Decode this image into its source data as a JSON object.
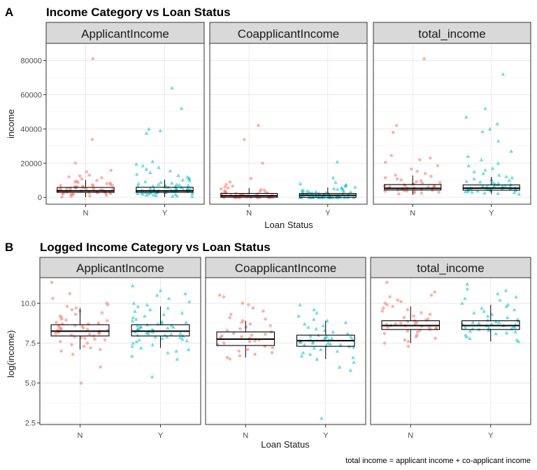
{
  "caption": "total income = applicant income + co-applicant income",
  "colors": {
    "N": "#F8766D",
    "Y": "#00BFC4",
    "strip_bg": "#D9D9D9",
    "grid": "#EBEBEB"
  },
  "chart_data": [
    {
      "tag": "A",
      "type": "box-jitter",
      "title": "Income Category vs Loan Status",
      "xlabel": "Loan Status",
      "ylabel": "income",
      "categories": [
        "N",
        "Y"
      ],
      "ylim": [
        -4000,
        90000
      ],
      "yticks": [
        0,
        20000,
        40000,
        60000,
        80000
      ],
      "ytick_labels": [
        "0",
        "20000",
        "40000",
        "60000",
        "80000"
      ],
      "grid": true,
      "panels": [
        {
          "label": "ApplicantIncome",
          "N": {
            "q1": 2900,
            "median": 3800,
            "q3": 5800,
            "whisker_low": 150,
            "whisker_high": 10200,
            "points": [
              81000,
              33800,
              20000,
              15800,
              14900,
              13000,
              12500,
              12000,
              11400,
              10800,
              9800,
              9500,
              9100,
              8600,
              8300,
              8000,
              7600,
              7300,
              7000,
              6800,
              6500,
              6200,
              6000,
              5800,
              5500,
              5200,
              5000,
              4800,
              4600,
              4400,
              4200,
              4000,
              3900,
              3700,
              3500,
              3300,
              3100,
              3000,
              2800,
              2600,
              2500,
              2300,
              2100,
              1900,
              1700,
              1500,
              1200,
              900,
              600,
              300,
              4100,
              3600,
              3200,
              2900,
              5400,
              4900,
              6300,
              7100
            ]
          },
          "Y": {
            "q1": 2900,
            "median": 3800,
            "q3": 5900,
            "whisker_low": 200,
            "whisker_high": 10400,
            "points": [
              64000,
              52000,
              40000,
              39000,
              37500,
              21000,
              19500,
              18500,
              17500,
              16500,
              15500,
              14500,
              13500,
              12800,
              12000,
              11300,
              10800,
              10200,
              9700,
              9200,
              8800,
              8400,
              8000,
              7600,
              7300,
              7000,
              6700,
              6400,
              6100,
              5900,
              5600,
              5300,
              5100,
              4900,
              4700,
              4500,
              4300,
              4100,
              3900,
              3700,
              3500,
              3300,
              3100,
              2900,
              2700,
              2500,
              2300,
              2100,
              1900,
              1700,
              1500,
              1300,
              1100,
              900,
              700,
              500,
              4000,
              3800,
              3600,
              3400,
              4200,
              4400,
              4800,
              5200,
              5800,
              6300,
              6900,
              7500,
              3000,
              2600,
              2200,
              3300,
              3700,
              4100
            ]
          }
        },
        {
          "label": "CoapplicantIncome",
          "N": {
            "q1": 0,
            "median": 900,
            "q3": 2300,
            "whisker_low": 0,
            "whisker_high": 5500,
            "points": [
              42000,
              33800,
              20000,
              11000,
              9000,
              7500,
              6500,
              6000,
              5500,
              5000,
              4500,
              4200,
              3800,
              3500,
              3200,
              3000,
              2800,
              2500,
              2300,
              2000,
              1800,
              1600,
              1400,
              1200,
              1000,
              800,
              500,
              300,
              0,
              0,
              0,
              0,
              0,
              0,
              0,
              0,
              0,
              0,
              0,
              0,
              0,
              0,
              1500,
              2200,
              2600,
              1100,
              1700
            ]
          },
          "Y": {
            "q1": 0,
            "median": 1200,
            "q3": 2300,
            "whisker_low": 0,
            "whisker_high": 5700,
            "points": [
              20800,
              11500,
              8900,
              8000,
              7500,
              7000,
              6500,
              6000,
              5700,
              5400,
              5100,
              4800,
              4500,
              4200,
              4000,
              3800,
              3600,
              3400,
              3200,
              3000,
              2800,
              2600,
              2400,
              2200,
              2000,
              1800,
              1600,
              1400,
              1200,
              1000,
              800,
              600,
              400,
              200,
              0,
              0,
              0,
              0,
              0,
              0,
              0,
              0,
              0,
              0,
              0,
              0,
              0,
              0,
              0,
              0,
              0,
              0,
              0,
              0,
              1300,
              1700,
              2100,
              2500,
              1500,
              1900
            ]
          }
        },
        {
          "label": "total_income",
          "N": {
            "q1": 4300,
            "median": 5300,
            "q3": 7500,
            "whisker_low": 1500,
            "whisker_high": 12800,
            "points": [
              81000,
              42000,
              38000,
              24500,
              23000,
              22000,
              20500,
              18500,
              16500,
              15200,
              14000,
              13000,
              12300,
              11500,
              10800,
              10200,
              9700,
              9200,
              8700,
              8300,
              7900,
              7500,
              7200,
              6900,
              6600,
              6300,
              6000,
              5800,
              5600,
              5400,
              5200,
              5000,
              4800,
              4600,
              4400,
              4200,
              4000,
              3800,
              3600,
              3300,
              3000,
              2700,
              2400,
              2000,
              5500,
              6200,
              6800,
              5100
            ]
          },
          "Y": {
            "q1": 4200,
            "median": 5400,
            "q3": 7300,
            "whisker_low": 1900,
            "whisker_high": 12000,
            "points": [
              72000,
              52000,
              47000,
              43000,
              40000,
              38500,
              33000,
              27000,
              24000,
              22000,
              20000,
              18500,
              17000,
              16000,
              15000,
              14000,
              13000,
              12200,
              11500,
              10900,
              10400,
              9900,
              9400,
              9000,
              8600,
              8200,
              7800,
              7500,
              7200,
              6900,
              6600,
              6300,
              6100,
              5900,
              5700,
              5500,
              5300,
              5100,
              4900,
              4700,
              4500,
              4300,
              4100,
              3900,
              3700,
              3500,
              3300,
              3100,
              2900,
              2600,
              2300,
              2000,
              5600,
              6000,
              6400,
              6800,
              5200,
              4800,
              5400,
              5800
            ]
          }
        }
      ]
    },
    {
      "tag": "B",
      "type": "box-jitter",
      "title": "Logged Income Category vs Loan Status",
      "xlabel": "Loan Status",
      "ylabel": "log(income)",
      "categories": [
        "N",
        "Y"
      ],
      "ylim": [
        2.4,
        11.6
      ],
      "yticks": [
        2.5,
        5.0,
        7.5,
        10.0
      ],
      "ytick_labels": [
        "2.5",
        "5.0",
        "7.5",
        "10.0"
      ],
      "grid": true,
      "panels": [
        {
          "label": "ApplicantIncome",
          "N": {
            "q1": 7.95,
            "median": 8.25,
            "q3": 8.65,
            "whisker_low": 7.1,
            "whisker_high": 9.7,
            "points": [
              11.3,
              10.6,
              10.3,
              10.0,
              9.9,
              9.8,
              9.7,
              9.6,
              9.5,
              9.4,
              9.3,
              9.2,
              9.1,
              9.0,
              8.95,
              8.9,
              8.8,
              8.75,
              8.7,
              8.6,
              8.55,
              8.5,
              8.45,
              8.4,
              8.35,
              8.3,
              8.25,
              8.2,
              8.15,
              8.1,
              8.05,
              8.0,
              7.95,
              7.9,
              7.85,
              7.8,
              7.75,
              7.7,
              7.6,
              7.5,
              7.4,
              7.3,
              7.2,
              7.1,
              7.0,
              6.8,
              6.0,
              5.0,
              8.3,
              8.4,
              8.2,
              8.1,
              8.6,
              8.7
            ]
          },
          "Y": {
            "q1": 7.95,
            "median": 8.25,
            "q3": 8.65,
            "whisker_low": 7.2,
            "whisker_high": 9.8,
            "points": [
              11.1,
              10.8,
              10.6,
              10.5,
              10.3,
              10.1,
              10.0,
              9.9,
              9.8,
              9.7,
              9.6,
              9.5,
              9.4,
              9.3,
              9.2,
              9.1,
              9.0,
              8.9,
              8.85,
              8.8,
              8.75,
              8.7,
              8.65,
              8.6,
              8.55,
              8.5,
              8.45,
              8.4,
              8.35,
              8.3,
              8.25,
              8.2,
              8.15,
              8.1,
              8.05,
              8.0,
              7.95,
              7.9,
              7.85,
              7.8,
              7.75,
              7.7,
              7.65,
              7.6,
              7.5,
              7.4,
              7.3,
              7.2,
              7.1,
              7.0,
              6.9,
              6.7,
              6.5,
              5.4,
              8.3,
              8.4,
              8.2,
              8.1,
              8.5,
              8.6,
              8.0,
              7.9
            ]
          }
        },
        {
          "label": "CoapplicantIncome",
          "N": {
            "q1": 7.35,
            "median": 7.75,
            "q3": 8.2,
            "whisker_low": 6.6,
            "whisker_high": 8.9,
            "points": [
              10.5,
              10.4,
              10.0,
              9.9,
              9.7,
              9.5,
              9.3,
              9.1,
              9.0,
              8.9,
              8.8,
              8.7,
              8.6,
              8.5,
              8.4,
              8.3,
              8.2,
              8.1,
              8.0,
              7.9,
              7.8,
              7.7,
              7.6,
              7.5,
              7.4,
              7.3,
              7.2,
              7.1,
              7.0,
              6.9,
              6.8,
              6.7,
              6.6,
              6.5,
              7.85,
              7.95,
              8.05,
              7.65
            ]
          },
          "Y": {
            "q1": 7.3,
            "median": 7.65,
            "q3": 8.0,
            "whisker_low": 6.5,
            "whisker_high": 8.9,
            "points": [
              9.9,
              9.6,
              9.4,
              9.2,
              9.0,
              8.9,
              8.8,
              8.7,
              8.6,
              8.5,
              8.4,
              8.3,
              8.2,
              8.1,
              8.0,
              7.95,
              7.9,
              7.85,
              7.8,
              7.75,
              7.7,
              7.65,
              7.6,
              7.55,
              7.5,
              7.45,
              7.4,
              7.35,
              7.3,
              7.25,
              7.2,
              7.1,
              7.0,
              6.9,
              6.8,
              6.7,
              6.6,
              6.5,
              6.3,
              6.0,
              5.8,
              2.8,
              7.7,
              7.6,
              7.8,
              7.5,
              7.9,
              7.4
            ]
          }
        },
        {
          "label": "total_income",
          "N": {
            "q1": 8.35,
            "median": 8.6,
            "q3": 8.9,
            "whisker_low": 7.5,
            "whisker_high": 9.8,
            "points": [
              11.3,
              10.7,
              10.5,
              10.4,
              10.2,
              10.1,
              10.0,
              9.9,
              9.8,
              9.7,
              9.6,
              9.5,
              9.4,
              9.3,
              9.2,
              9.1,
              9.0,
              8.95,
              8.9,
              8.85,
              8.8,
              8.75,
              8.7,
              8.65,
              8.6,
              8.55,
              8.5,
              8.45,
              8.4,
              8.35,
              8.3,
              8.25,
              8.2,
              8.1,
              8.0,
              7.9,
              7.8,
              7.7,
              7.6,
              7.5,
              7.3,
              8.6,
              8.7,
              8.5
            ]
          },
          "Y": {
            "q1": 8.35,
            "median": 8.6,
            "q3": 8.9,
            "whisker_low": 7.6,
            "whisker_high": 9.9,
            "points": [
              11.2,
              10.9,
              10.8,
              10.6,
              10.4,
              10.3,
              10.2,
              10.0,
              9.9,
              9.8,
              9.7,
              9.6,
              9.5,
              9.4,
              9.3,
              9.2,
              9.1,
              9.0,
              8.95,
              8.9,
              8.85,
              8.8,
              8.75,
              8.7,
              8.65,
              8.6,
              8.55,
              8.5,
              8.45,
              8.4,
              8.35,
              8.3,
              8.25,
              8.2,
              8.15,
              8.1,
              8.0,
              7.9,
              7.8,
              7.7,
              7.6,
              8.6,
              8.7,
              8.5,
              8.4,
              8.8
            ]
          }
        }
      ]
    }
  ]
}
